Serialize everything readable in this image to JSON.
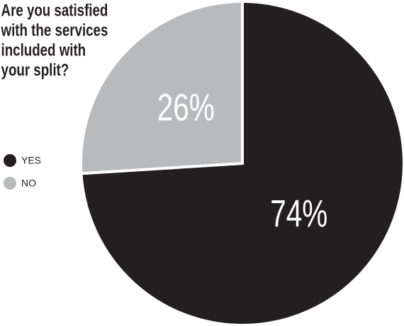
{
  "chart_data": {
    "type": "pie",
    "title_lines": [
      "Are you satisfied",
      "with the services",
      "included with",
      "your split?"
    ],
    "categories": [
      "YES",
      "NO"
    ],
    "values": [
      74,
      26
    ],
    "value_labels": [
      "74%",
      "26%"
    ],
    "colors": [
      "#231f20",
      "#b9babc"
    ]
  }
}
